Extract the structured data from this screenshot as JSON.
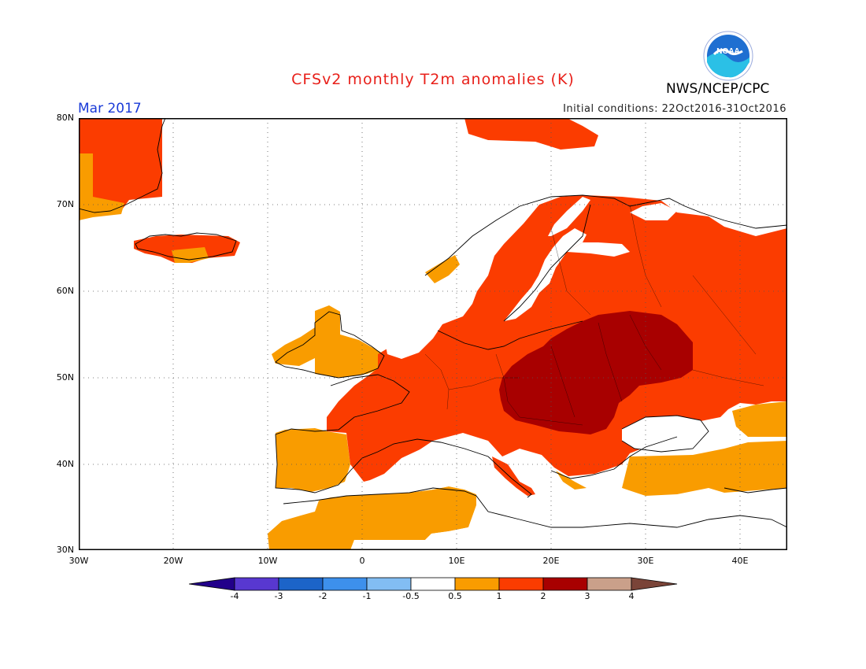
{
  "header": {
    "title": "CFSv2 monthly T2m anomalies (K)",
    "org": "NWS/NCEP/CPC",
    "month": "Mar 2017",
    "initial_conditions": "Initial conditions: 22Oct2016-31Oct2016",
    "logo_text": "NOAA"
  },
  "map": {
    "lon_range": [
      -30,
      45
    ],
    "lat_range": [
      30,
      80
    ],
    "lat_labels": [
      "80N",
      "70N",
      "60N",
      "50N",
      "40N",
      "30N"
    ],
    "lon_labels": [
      "30W",
      "20W",
      "10W",
      "0",
      "10E",
      "20E",
      "30E",
      "40E"
    ],
    "anomaly_regions": [
      {
        "region": "Greenland",
        "class": "1-2"
      },
      {
        "region": "Iceland",
        "class": "0.5-2"
      },
      {
        "region": "Svalbard",
        "class": "1-2"
      },
      {
        "region": "Scandinavia",
        "class": "1-2"
      },
      {
        "region": "Eastern Europe / Russia",
        "class": "1-2"
      },
      {
        "region": "Central-Eastern Europe",
        "class": "2-3"
      },
      {
        "region": "Western Europe / France",
        "class": "1-2"
      },
      {
        "region": "British Isles",
        "class": "0.5-1"
      },
      {
        "region": "Iberia",
        "class": "0.5-1"
      },
      {
        "region": "North Africa",
        "class": "0.5-1"
      },
      {
        "region": "Turkey",
        "class": "0.5-2"
      }
    ]
  },
  "colorbar": {
    "colors": [
      "#22008a",
      "#5838d0",
      "#1c64c8",
      "#3d90ec",
      "#82bdf3",
      "#ffffff",
      "#f99c00",
      "#fb3c00",
      "#a80000",
      "#caa08a",
      "#7a4438"
    ],
    "labels": [
      "-4",
      "-3",
      "-2",
      "-1",
      "-0.5",
      "0.5",
      "1",
      "2",
      "3",
      "4"
    ]
  }
}
